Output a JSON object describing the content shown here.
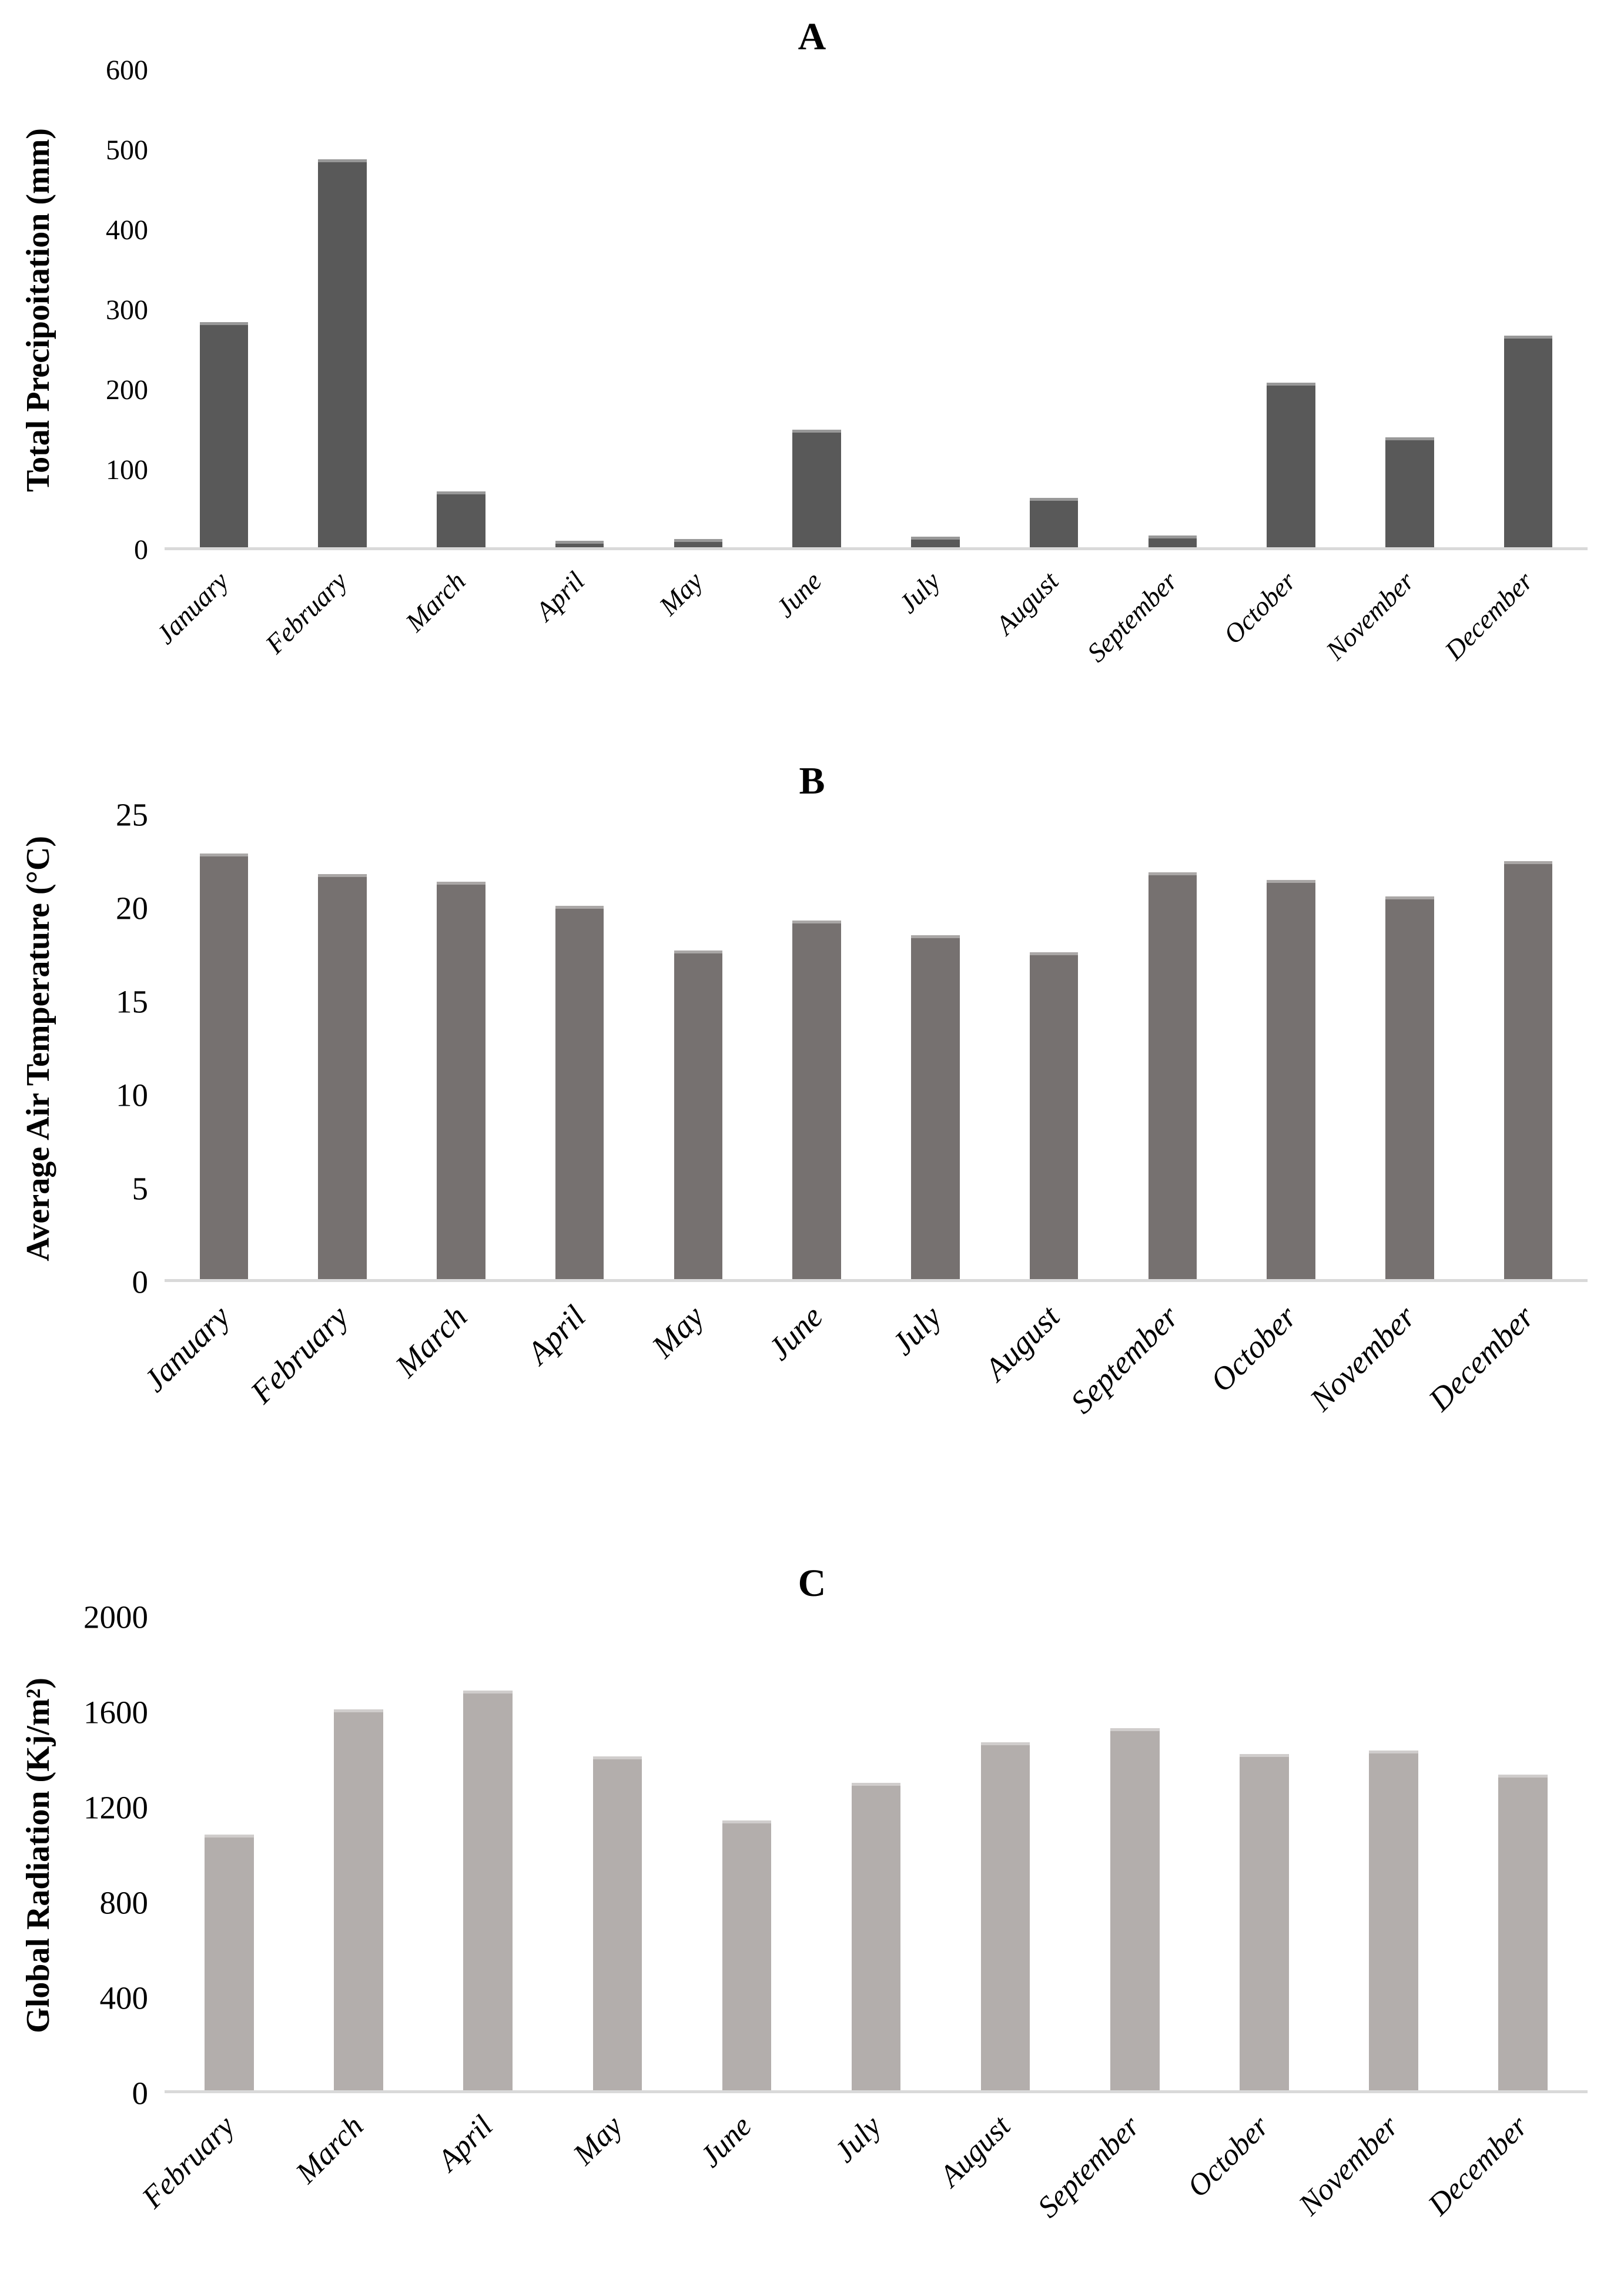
{
  "chart_data": [
    {
      "id": "A",
      "type": "bar",
      "title": "A",
      "ylabel": "Total Precipoitation (mm)",
      "xlabel": "",
      "bar_color": "#595959",
      "axis_line_color": "#d9d9d9",
      "legend": "none",
      "grid": false,
      "ylim": [
        0,
        600
      ],
      "yticks": [
        0,
        100,
        200,
        300,
        400,
        500,
        600
      ],
      "categories": [
        "January",
        "February",
        "March",
        "April",
        "May",
        "June",
        "July",
        "August",
        "September",
        "October",
        "November",
        "December"
      ],
      "values": [
        283,
        488,
        70,
        8,
        10,
        148,
        13,
        62,
        15,
        207,
        138,
        266
      ]
    },
    {
      "id": "B",
      "type": "bar",
      "title": "B",
      "ylabel": "Average Air Temperature (°C)",
      "xlabel": "",
      "bar_color": "#767170",
      "axis_line_color": "#d9d9d9",
      "legend": "none",
      "grid": false,
      "ylim": [
        0,
        25
      ],
      "yticks": [
        0,
        5,
        10,
        15,
        20,
        25
      ],
      "categories": [
        "January",
        "February",
        "March",
        "April",
        "May",
        "June",
        "July",
        "August",
        "September",
        "October",
        "November",
        "December"
      ],
      "values": [
        22.9,
        21.8,
        21.4,
        20.1,
        17.7,
        19.3,
        18.5,
        17.6,
        21.9,
        21.5,
        20.6,
        22.5
      ]
    },
    {
      "id": "C",
      "type": "bar",
      "title": "C",
      "ylabel": "Global Radiation (Kj/m²)",
      "xlabel": "",
      "bar_color": "#b3aeac",
      "axis_line_color": "#d9d9d9",
      "legend": "none",
      "grid": false,
      "ylim": [
        0,
        2000
      ],
      "yticks": [
        0,
        400,
        800,
        1200,
        1600,
        2000
      ],
      "categories": [
        "February",
        "March",
        "April",
        "May",
        "June",
        "July",
        "August",
        "September",
        "October",
        "November",
        "December"
      ],
      "values": [
        1080,
        1610,
        1690,
        1410,
        1140,
        1300,
        1470,
        1530,
        1420,
        1435,
        1335
      ]
    }
  ]
}
